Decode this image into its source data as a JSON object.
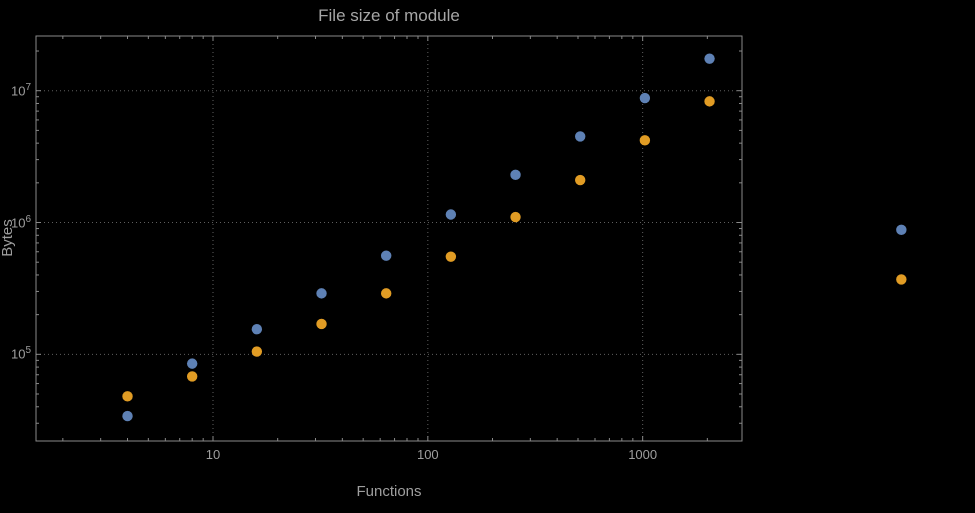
{
  "page": {
    "background": "#000000"
  },
  "chart_data": {
    "type": "scatter",
    "title": "File size of module",
    "xlabel": "Functions",
    "ylabel": "Bytes",
    "x_scale": "log",
    "y_scale": "log",
    "xlim": [
      1.5,
      2900
    ],
    "ylim": [
      22000,
      26000000
    ],
    "legend": null,
    "grid": {
      "style": "dotted",
      "x_lines": [
        10,
        100,
        1000
      ],
      "y_lines": [
        100000,
        1000000,
        10000000
      ]
    },
    "x_ticks": [
      {
        "value": 10,
        "label": "10"
      },
      {
        "value": 100,
        "label": "100"
      },
      {
        "value": 1000,
        "label": "1000"
      }
    ],
    "y_ticks": [
      {
        "value": 100000,
        "base": "10",
        "exp": "5"
      },
      {
        "value": 1000000,
        "base": "10",
        "exp": "6"
      },
      {
        "value": 10000000,
        "base": "10",
        "exp": "7"
      }
    ],
    "series": [
      {
        "name": "blue-series",
        "color": "#5E81B5",
        "points": [
          {
            "x": 4,
            "y": 34000
          },
          {
            "x": 8,
            "y": 85000
          },
          {
            "x": 16,
            "y": 155000
          },
          {
            "x": 32,
            "y": 290000
          },
          {
            "x": 64,
            "y": 560000
          },
          {
            "x": 128,
            "y": 1150000
          },
          {
            "x": 256,
            "y": 2300000
          },
          {
            "x": 512,
            "y": 4500000
          },
          {
            "x": 1024,
            "y": 8800000
          },
          {
            "x": 2048,
            "y": 17500000
          },
          {
            "x": 16000,
            "y": 880000
          }
        ]
      },
      {
        "name": "orange-series",
        "color": "#E19C24",
        "points": [
          {
            "x": 4,
            "y": 48000
          },
          {
            "x": 8,
            "y": 68000
          },
          {
            "x": 16,
            "y": 105000
          },
          {
            "x": 32,
            "y": 170000
          },
          {
            "x": 64,
            "y": 290000
          },
          {
            "x": 128,
            "y": 550000
          },
          {
            "x": 256,
            "y": 1100000
          },
          {
            "x": 512,
            "y": 2100000
          },
          {
            "x": 1024,
            "y": 4200000
          },
          {
            "x": 2048,
            "y": 8300000
          },
          {
            "x": 16000,
            "y": 370000
          }
        ]
      }
    ],
    "frame_color": "#8A8A8A",
    "grid_color": "#5F5F5F",
    "text_color": "#9E9E9E"
  }
}
